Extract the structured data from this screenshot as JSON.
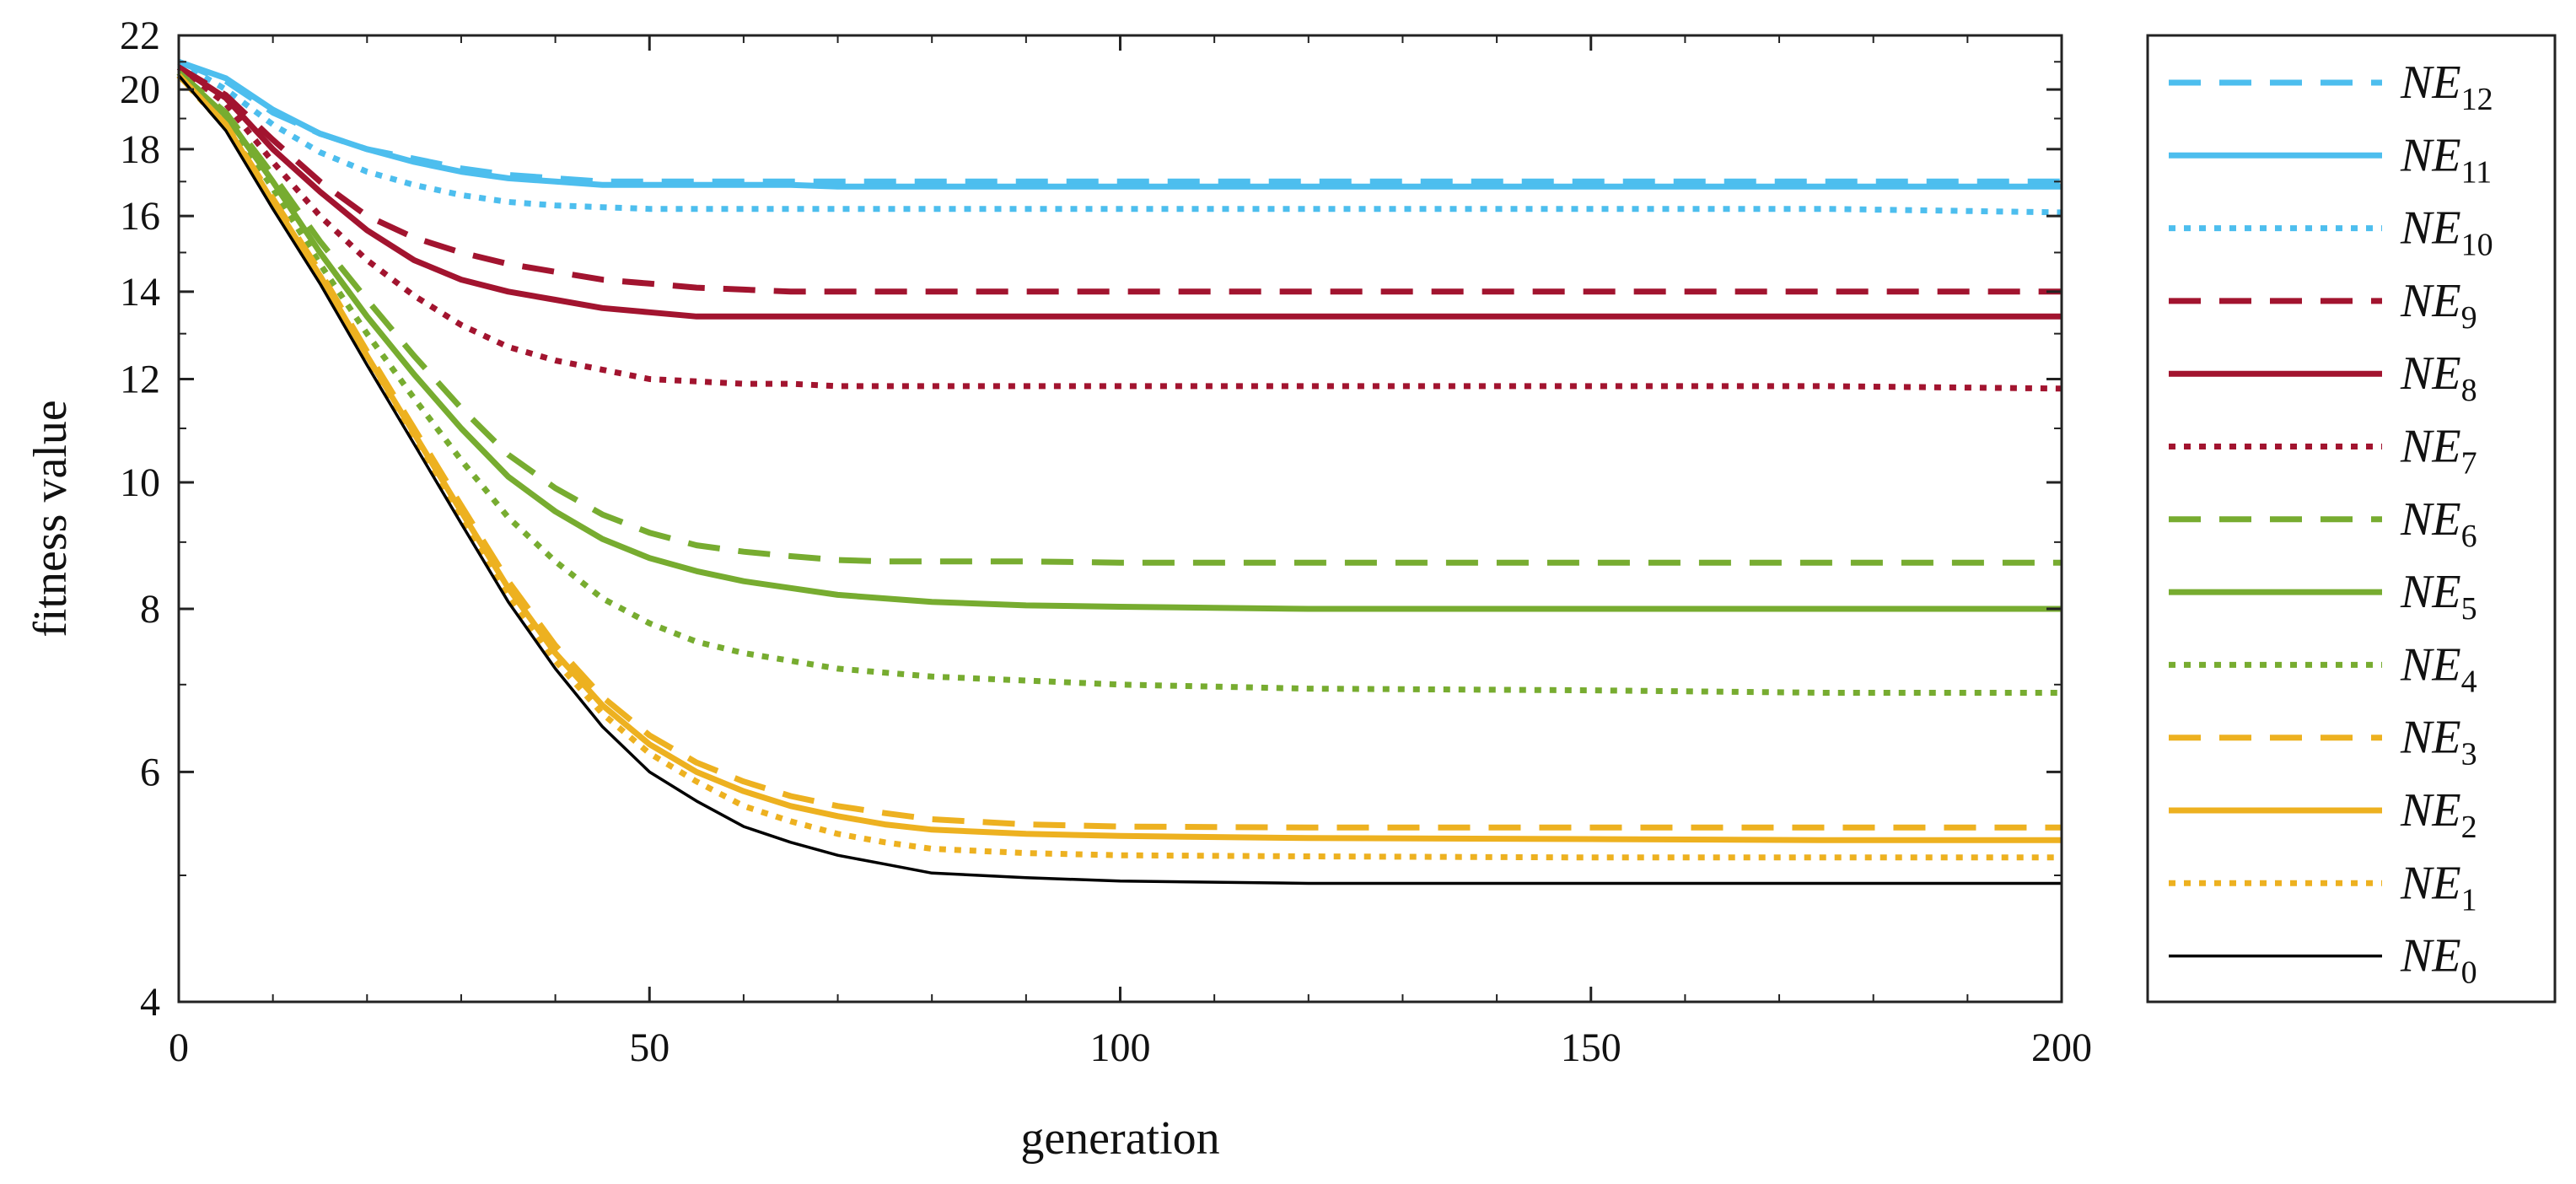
{
  "chart_data": {
    "type": "line",
    "title": "",
    "xlabel": "generation",
    "ylabel": "fitness value",
    "xlim": [
      0,
      200
    ],
    "ylim": [
      4,
      22
    ],
    "yscale": "log",
    "grid": false,
    "legend_position": "right-outside",
    "x_ticks": [
      "0",
      "50",
      "100",
      "150",
      "200"
    ],
    "y_ticks": [
      "4",
      "6",
      "8",
      "10",
      "12",
      "14",
      "16",
      "18",
      "20",
      "22"
    ],
    "x": [
      0,
      5,
      10,
      15,
      20,
      25,
      30,
      35,
      40,
      45,
      50,
      55,
      60,
      65,
      70,
      75,
      80,
      90,
      100,
      120,
      150,
      175,
      200
    ],
    "series": [
      {
        "name": "NE",
        "sub": "12",
        "color": "#4DBEEE",
        "dash": "dashed",
        "values": [
          21.0,
          20.3,
          19.2,
          18.5,
          18.0,
          17.7,
          17.4,
          17.2,
          17.1,
          17.0,
          17.0,
          17.0,
          17.0,
          17.0,
          17.0,
          17.0,
          17.0,
          17.0,
          17.0,
          17.0,
          17.0,
          17.0,
          17.0
        ]
      },
      {
        "name": "NE",
        "sub": "11",
        "color": "#4DBEEE",
        "dash": "solid",
        "values": [
          21.0,
          20.4,
          19.3,
          18.5,
          18.0,
          17.6,
          17.3,
          17.1,
          17.0,
          16.9,
          16.9,
          16.9,
          16.9,
          16.9,
          16.85,
          16.85,
          16.85,
          16.85,
          16.85,
          16.85,
          16.85,
          16.85,
          16.85
        ]
      },
      {
        "name": "NE",
        "sub": "10",
        "color": "#4DBEEE",
        "dash": "dotted",
        "values": [
          21.0,
          20.0,
          18.8,
          17.9,
          17.3,
          16.9,
          16.6,
          16.4,
          16.3,
          16.25,
          16.2,
          16.2,
          16.2,
          16.2,
          16.2,
          16.2,
          16.2,
          16.2,
          16.2,
          16.2,
          16.2,
          16.2,
          16.1
        ]
      },
      {
        "name": "NE",
        "sub": "9",
        "color": "#A2142F",
        "dash": "dashed",
        "values": [
          20.8,
          19.8,
          18.3,
          17.0,
          16.0,
          15.4,
          15.0,
          14.7,
          14.5,
          14.3,
          14.2,
          14.1,
          14.05,
          14.0,
          14.0,
          14.0,
          14.0,
          14.0,
          14.0,
          14.0,
          14.0,
          14.0,
          14.0
        ]
      },
      {
        "name": "NE",
        "sub": "8",
        "color": "#A2142F",
        "dash": "solid",
        "values": [
          20.8,
          19.7,
          18.0,
          16.7,
          15.6,
          14.8,
          14.3,
          14.0,
          13.8,
          13.6,
          13.5,
          13.4,
          13.4,
          13.4,
          13.4,
          13.4,
          13.4,
          13.4,
          13.4,
          13.4,
          13.4,
          13.4,
          13.4
        ]
      },
      {
        "name": "NE",
        "sub": "7",
        "color": "#A2142F",
        "dash": "dotted",
        "values": [
          20.8,
          19.5,
          17.6,
          16.0,
          14.8,
          13.9,
          13.2,
          12.7,
          12.4,
          12.2,
          12.0,
          11.95,
          11.9,
          11.9,
          11.85,
          11.85,
          11.85,
          11.85,
          11.85,
          11.85,
          11.85,
          11.85,
          11.8
        ]
      },
      {
        "name": "NE",
        "sub": "6",
        "color": "#77AC30",
        "dash": "dashed",
        "values": [
          20.6,
          19.2,
          17.2,
          15.3,
          13.8,
          12.5,
          11.4,
          10.5,
          9.9,
          9.45,
          9.15,
          8.95,
          8.85,
          8.78,
          8.72,
          8.7,
          8.7,
          8.7,
          8.68,
          8.68,
          8.68,
          8.68,
          8.68
        ]
      },
      {
        "name": "NE",
        "sub": "5",
        "color": "#77AC30",
        "dash": "solid",
        "values": [
          20.6,
          19.1,
          17.0,
          15.0,
          13.4,
          12.1,
          11.0,
          10.1,
          9.5,
          9.05,
          8.75,
          8.55,
          8.4,
          8.3,
          8.2,
          8.15,
          8.1,
          8.05,
          8.03,
          8.0,
          8.0,
          8.0,
          8.0
        ]
      },
      {
        "name": "NE",
        "sub": "4",
        "color": "#77AC30",
        "dash": "dotted",
        "values": [
          20.6,
          19.0,
          16.8,
          14.7,
          13.0,
          11.6,
          10.4,
          9.4,
          8.7,
          8.15,
          7.8,
          7.55,
          7.4,
          7.3,
          7.2,
          7.15,
          7.1,
          7.05,
          7.0,
          6.95,
          6.93,
          6.9,
          6.9
        ]
      },
      {
        "name": "NE",
        "sub": "3",
        "color": "#EDB120",
        "dash": "dashed",
        "values": [
          20.5,
          18.8,
          16.5,
          14.5,
          12.6,
          11.0,
          9.6,
          8.4,
          7.5,
          6.85,
          6.4,
          6.1,
          5.9,
          5.75,
          5.65,
          5.58,
          5.52,
          5.47,
          5.45,
          5.44,
          5.44,
          5.44,
          5.44
        ]
      },
      {
        "name": "NE",
        "sub": "2",
        "color": "#EDB120",
        "dash": "solid",
        "values": [
          20.5,
          18.8,
          16.4,
          14.4,
          12.5,
          10.9,
          9.5,
          8.3,
          7.4,
          6.75,
          6.3,
          6.0,
          5.8,
          5.65,
          5.55,
          5.47,
          5.42,
          5.38,
          5.36,
          5.34,
          5.33,
          5.32,
          5.32
        ]
      },
      {
        "name": "NE",
        "sub": "1",
        "color": "#EDB120",
        "dash": "dotted",
        "values": [
          20.5,
          18.7,
          16.3,
          14.3,
          12.4,
          10.8,
          9.4,
          8.2,
          7.3,
          6.65,
          6.2,
          5.9,
          5.65,
          5.5,
          5.38,
          5.3,
          5.24,
          5.2,
          5.18,
          5.17,
          5.16,
          5.16,
          5.16
        ]
      },
      {
        "name": "NE",
        "sub": "0",
        "color": "#000000",
        "dash": "solid-thin",
        "values": [
          20.5,
          18.6,
          16.2,
          14.2,
          12.3,
          10.7,
          9.3,
          8.1,
          7.2,
          6.5,
          6.0,
          5.7,
          5.45,
          5.3,
          5.18,
          5.1,
          5.02,
          4.98,
          4.95,
          4.93,
          4.93,
          4.93,
          4.93
        ]
      }
    ]
  }
}
